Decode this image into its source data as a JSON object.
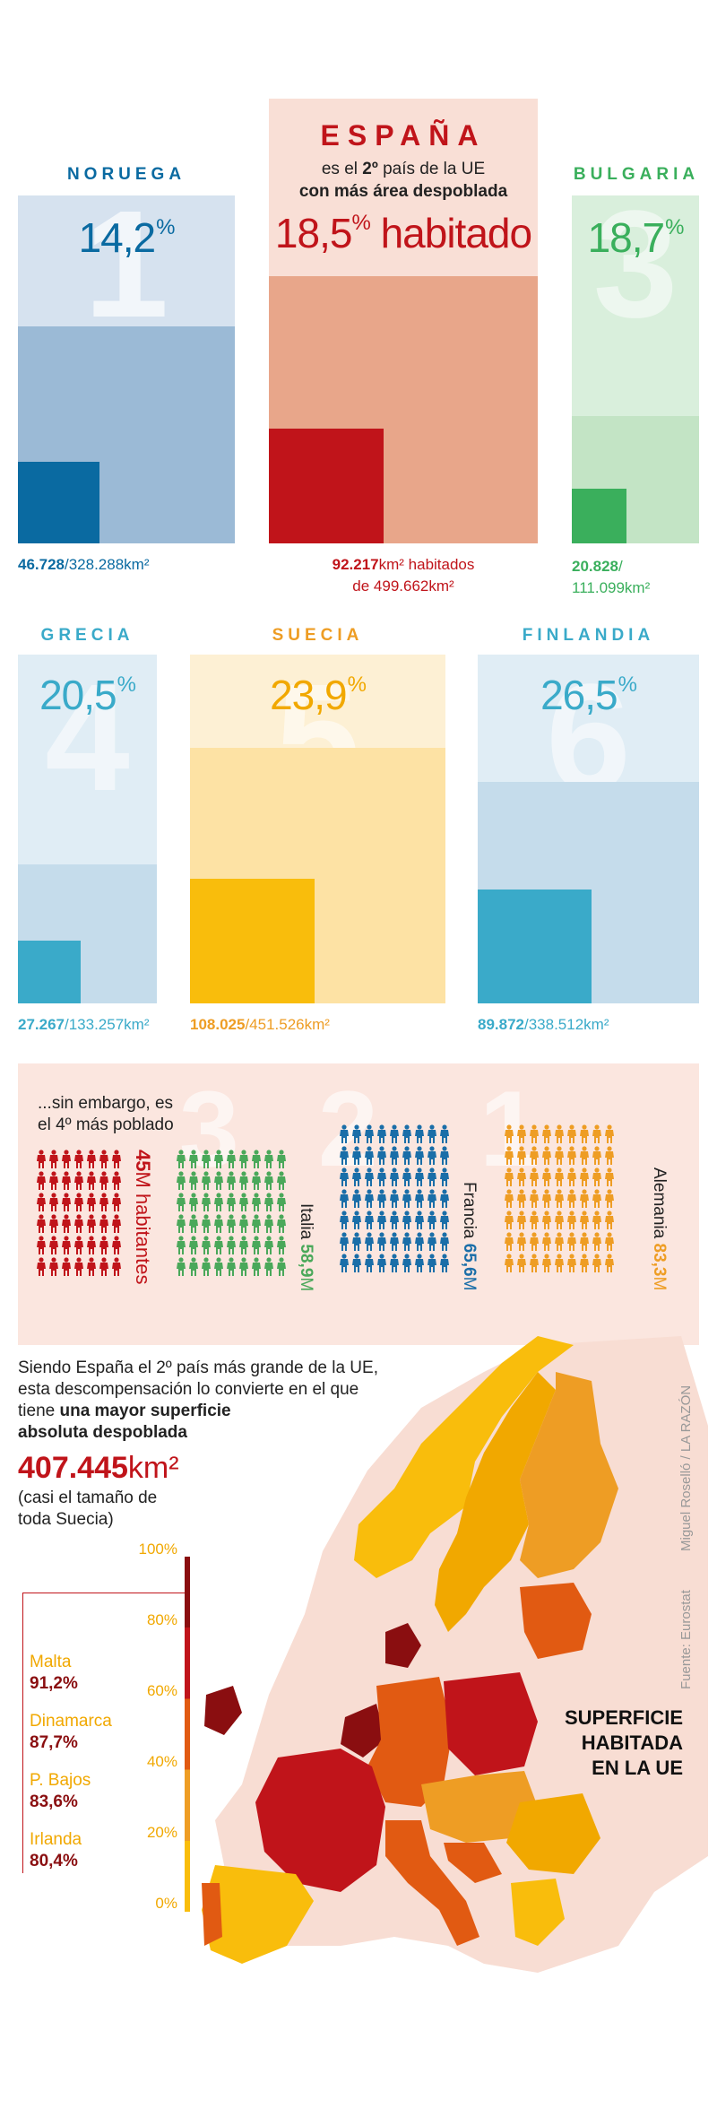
{
  "spain": {
    "name": "ESPAÑA",
    "line1_pre": "es el ",
    "line1_rank": "2º",
    "line1_post": " país de la UE",
    "line2": "con más área despoblada",
    "pct": "18,5",
    "pct_symbol": "%",
    "pct_word": "habitado",
    "area_strong": "92.217",
    "area_text1": "km² habitados",
    "area_text2": "de 499.662km²"
  },
  "countries": [
    {
      "name": "NORUEGA",
      "pct": "14,2",
      "rank": "1",
      "area_strong": "46.728",
      "area_rest": "/328.288km²"
    },
    {
      "name": "BULGARIA",
      "pct": "18,7",
      "rank": "3",
      "area_strong": "20.828",
      "area_rest": "/",
      "area_rest2": "111.099km²"
    },
    {
      "name": "GRECIA",
      "pct": "20,5",
      "rank": "4",
      "area_strong": "27.267",
      "area_rest": "/133.257km²"
    },
    {
      "name": "SUECIA",
      "pct": "23,9",
      "rank": "5",
      "area_strong": "108.025",
      "area_rest": "/451.526km²"
    },
    {
      "name": "FINLANDIA",
      "pct": "26,5",
      "rank": "6",
      "area_strong": "89.872",
      "area_rest": "/338.512km²"
    }
  ],
  "pct_symbol": "%",
  "population": {
    "intro_line1": "...sin embargo, es",
    "intro_line2": "el 4º más poblado",
    "ranks": [
      "3",
      "2",
      "1"
    ],
    "spain": {
      "value": "45",
      "unit": "M",
      "label": "habitantes"
    },
    "italy": {
      "name": "Italia",
      "value": "58,9",
      "unit": "M"
    },
    "france": {
      "name": "Francia",
      "value": "65,6",
      "unit": "M"
    },
    "germany": {
      "name": "Alemania",
      "value": "83,3",
      "unit": "M"
    }
  },
  "summary": {
    "line1": "Siendo España el 2º país más grande de la UE,",
    "line2": "esta descompensación lo convierte en el que",
    "line3_pre": "tiene ",
    "line3_bold": "una mayor superficie",
    "line4_bold": "absoluta despoblada",
    "big_value": "407.445",
    "big_unit": "km²",
    "note1": "(casi el tamaño de",
    "note2": "toda Suecia)"
  },
  "legend": {
    "ticks": [
      "100%",
      "80%",
      "60%",
      "40%",
      "20%",
      "0%"
    ],
    "items": [
      {
        "name": "Malta",
        "value": "91,2%"
      },
      {
        "name": "Dinamarca",
        "value": "87,7%"
      },
      {
        "name": "P. Bajos",
        "value": "83,6%"
      },
      {
        "name": "Irlanda",
        "value": "80,4%"
      }
    ]
  },
  "map_title": {
    "line1": "SUPERFICIE",
    "line2": "HABITADA",
    "line3": "EN LA UE"
  },
  "credits": {
    "author": "Miguel Roselló / LA RAZÓN",
    "source": "Fuente: Eurostat"
  },
  "colors": {
    "norway": "#0a6aa1",
    "spain": "#c0141a",
    "bulgaria": "#3aaf5c",
    "greece": "#3aaac9",
    "sweden": "#f9bd0c",
    "finland": "#3aaac9",
    "germany": "#ee9d24",
    "italy": "#4aa85a",
    "france": "#1a6ea8"
  }
}
